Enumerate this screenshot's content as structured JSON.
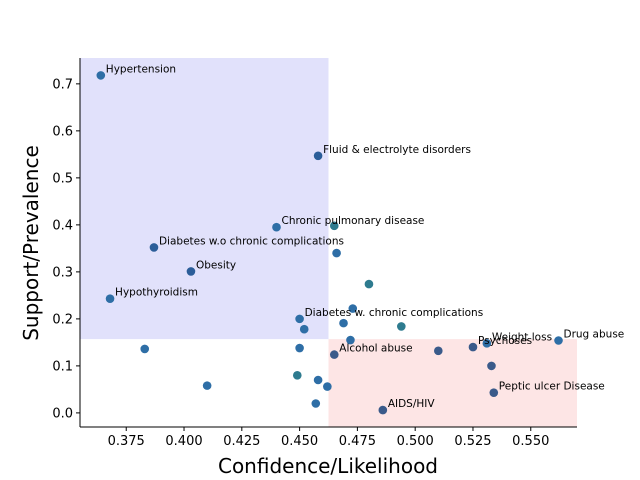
{
  "chart_data": {
    "type": "scatter",
    "title": "",
    "xlabel": "Confidence/Likelihood",
    "ylabel": "Support/Prevalence",
    "xlim": [
      0.355,
      0.57
    ],
    "ylim": [
      -0.03,
      0.755
    ],
    "xticks": [
      "0.375",
      "0.400",
      "0.425",
      "0.450",
      "0.475",
      "0.500",
      "0.525",
      "0.550"
    ],
    "xtick_values": [
      0.375,
      0.4,
      0.425,
      0.45,
      0.475,
      0.5,
      0.525,
      0.55
    ],
    "yticks": [
      "0.0",
      "0.1",
      "0.2",
      "0.3",
      "0.4",
      "0.5",
      "0.6",
      "0.7"
    ],
    "ytick_values": [
      0,
      0.1,
      0.2,
      0.3,
      0.4,
      0.5,
      0.6,
      0.7
    ],
    "grid": false,
    "regions": [
      {
        "x": [
          0.355,
          0.4625
        ],
        "y": [
          0.157,
          0.755
        ],
        "color": "#e1e1fb"
      },
      {
        "x": [
          0.4625,
          0.57
        ],
        "y": [
          -0.03,
          0.157
        ],
        "color": "#fde5e5"
      }
    ],
    "points": [
      {
        "x": 0.364,
        "y": 0.718,
        "label": "Hypertension",
        "color": "#2e6ea6"
      },
      {
        "x": 0.458,
        "y": 0.547,
        "label": "Fluid & electrolyte disorders",
        "color": "#2b5d99"
      },
      {
        "x": 0.44,
        "y": 0.395,
        "label": "Chronic pulmonary disease",
        "color": "#2e6ea6"
      },
      {
        "x": 0.465,
        "y": 0.398,
        "label": "",
        "color": "#2e7b8f"
      },
      {
        "x": 0.387,
        "y": 0.352,
        "label": "Diabetes w.o chronic complications",
        "color": "#2b5d99"
      },
      {
        "x": 0.466,
        "y": 0.34,
        "label": "",
        "color": "#2e6ea6"
      },
      {
        "x": 0.403,
        "y": 0.301,
        "label": "Obesity",
        "color": "#2b5d99"
      },
      {
        "x": 0.48,
        "y": 0.274,
        "label": "",
        "color": "#2e7b8f"
      },
      {
        "x": 0.368,
        "y": 0.243,
        "label": "Hypothyroidism",
        "color": "#2e6ea6"
      },
      {
        "x": 0.473,
        "y": 0.222,
        "label": "",
        "color": "#2e6ea6"
      },
      {
        "x": 0.45,
        "y": 0.2,
        "label": "Diabetes w. chronic complications",
        "color": "#2e6ea6"
      },
      {
        "x": 0.469,
        "y": 0.191,
        "label": "",
        "color": "#2e6ea6"
      },
      {
        "x": 0.494,
        "y": 0.184,
        "label": "",
        "color": "#2e7b8f"
      },
      {
        "x": 0.452,
        "y": 0.178,
        "label": "",
        "color": "#2e6ea6"
      },
      {
        "x": 0.472,
        "y": 0.155,
        "label": "",
        "color": "#2e6ea6"
      },
      {
        "x": 0.383,
        "y": 0.136,
        "label": "",
        "color": "#2e6ea6"
      },
      {
        "x": 0.45,
        "y": 0.138,
        "label": "",
        "color": "#2e6ea6"
      },
      {
        "x": 0.465,
        "y": 0.124,
        "label": "Alcohol abuse",
        "color": "#3a5a8a"
      },
      {
        "x": 0.51,
        "y": 0.132,
        "label": "",
        "color": "#3a5a8a"
      },
      {
        "x": 0.525,
        "y": 0.14,
        "label": "Psychoses",
        "color": "#3a5a8a"
      },
      {
        "x": 0.531,
        "y": 0.148,
        "label": "Weight loss",
        "color": "#2e6ea6"
      },
      {
        "x": 0.562,
        "y": 0.154,
        "label": "Drug abuse",
        "color": "#2e6ea6"
      },
      {
        "x": 0.533,
        "y": 0.1,
        "label": "",
        "color": "#3a5a8a"
      },
      {
        "x": 0.449,
        "y": 0.08,
        "label": "",
        "color": "#2e7b8f"
      },
      {
        "x": 0.458,
        "y": 0.07,
        "label": "",
        "color": "#2e6ea6"
      },
      {
        "x": 0.41,
        "y": 0.058,
        "label": "",
        "color": "#2e6ea6"
      },
      {
        "x": 0.462,
        "y": 0.056,
        "label": "",
        "color": "#2e6ea6"
      },
      {
        "x": 0.534,
        "y": 0.043,
        "label": "Peptic ulcer Disease",
        "color": "#3a5a8a"
      },
      {
        "x": 0.457,
        "y": 0.02,
        "label": "",
        "color": "#2e6ea6"
      },
      {
        "x": 0.486,
        "y": 0.006,
        "label": "AIDS/HIV",
        "color": "#3a5a8a"
      }
    ]
  }
}
